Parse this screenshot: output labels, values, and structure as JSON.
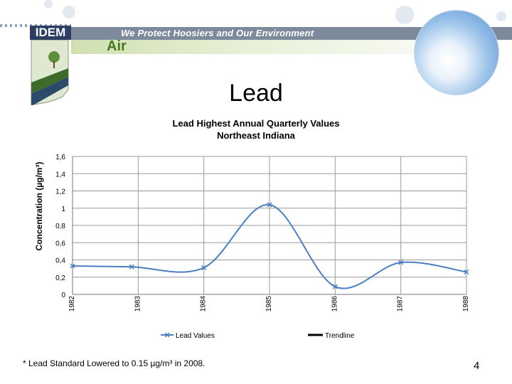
{
  "header": {
    "logo_text": "IDEM",
    "slogan": "We Protect Hoosiers and Our Environment",
    "section": "Air"
  },
  "page": {
    "title": "Lead",
    "footnote": "* Lead Standard Lowered to 0.15 µg/m³ in 2008.",
    "page_number": "4"
  },
  "chart_data": {
    "type": "line",
    "title_line1": "Lead Highest Annual Quarterly Values",
    "title_line2": "Northeast  Indiana",
    "ylabel": "Concentration (µg/m³)",
    "xlabel": "",
    "ylim": [
      0,
      1.6
    ],
    "yticks": [
      0,
      0.2,
      0.4,
      0.6,
      0.8,
      1,
      1.2,
      1.4,
      1.6
    ],
    "ytick_labels": [
      "0",
      "0,2",
      "0,4",
      "0,6",
      "0,8",
      "1",
      "1,2",
      "1,4",
      "1,6"
    ],
    "categories": [
      "1982",
      "1983",
      "1984",
      "1985",
      "1986",
      "1987",
      "1988"
    ],
    "x": [
      1982,
      1982.9,
      1984,
      1985,
      1986,
      1987,
      1988
    ],
    "series": [
      {
        "name": "Lead Values",
        "color": "#4a7fc1",
        "x": [
          1982,
          1982.9,
          1984,
          1985,
          1986,
          1987,
          1988
        ],
        "values": [
          0.33,
          0.32,
          0.31,
          1.04,
          0.09,
          0.37,
          0.26
        ]
      }
    ],
    "legend": [
      {
        "label": "Lead Values",
        "color": "#4a7fc1"
      },
      {
        "label": "Trendline",
        "color": "#000000"
      }
    ],
    "grid": true,
    "legend_position": "bottom"
  }
}
